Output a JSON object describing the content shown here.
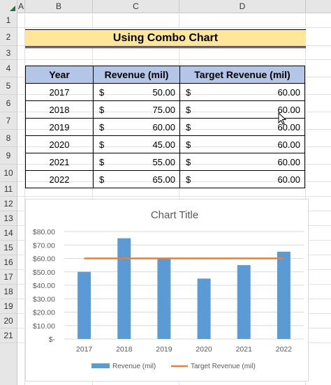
{
  "sheet": {
    "columns": [
      "A",
      "B",
      "C",
      "D"
    ],
    "rows": [
      "1",
      "2",
      "3",
      "4",
      "5",
      "6",
      "7",
      "8",
      "9",
      "10",
      "11",
      "12",
      "13",
      "14",
      "15",
      "16",
      "17",
      "18",
      "19",
      "20",
      "21"
    ],
    "title": "Using Combo Chart"
  },
  "table": {
    "headers": {
      "year": "Year",
      "revenue": "Revenue (mil)",
      "target": "Target Revenue (mil)"
    },
    "currency_symbol": "$",
    "rows": [
      {
        "year": "2017",
        "revenue": "50.00",
        "target": "60.00"
      },
      {
        "year": "2018",
        "revenue": "75.00",
        "target": "60.00"
      },
      {
        "year": "2019",
        "revenue": "60.00",
        "target": "60.00"
      },
      {
        "year": "2020",
        "revenue": "45.00",
        "target": "60.00"
      },
      {
        "year": "2021",
        "revenue": "55.00",
        "target": "60.00"
      },
      {
        "year": "2022",
        "revenue": "65.00",
        "target": "60.00"
      }
    ]
  },
  "chart_data": {
    "type": "bar",
    "title": "Chart Title",
    "categories": [
      "2017",
      "2018",
      "2019",
      "2020",
      "2021",
      "2022"
    ],
    "series": [
      {
        "name": "Revenue (mil)",
        "type": "bar",
        "values": [
          50,
          75,
          60,
          45,
          55,
          65
        ],
        "color": "#5b9bd5"
      },
      {
        "name": "Target Revenue (mil)",
        "type": "line",
        "values": [
          60,
          60,
          60,
          60,
          60,
          60
        ],
        "color": "#ed7d31"
      }
    ],
    "ylim": [
      0,
      80
    ],
    "yticks": [
      "$-",
      "$10.00",
      "$20.00",
      "$30.00",
      "$40.00",
      "$50.00",
      "$60.00",
      "$70.00",
      "$80.00"
    ],
    "grid": true,
    "legend": "bottom"
  },
  "colors": {
    "title_fill": "#ffe699",
    "header_fill": "#b4c6e7",
    "accent_excel": "#217346"
  }
}
